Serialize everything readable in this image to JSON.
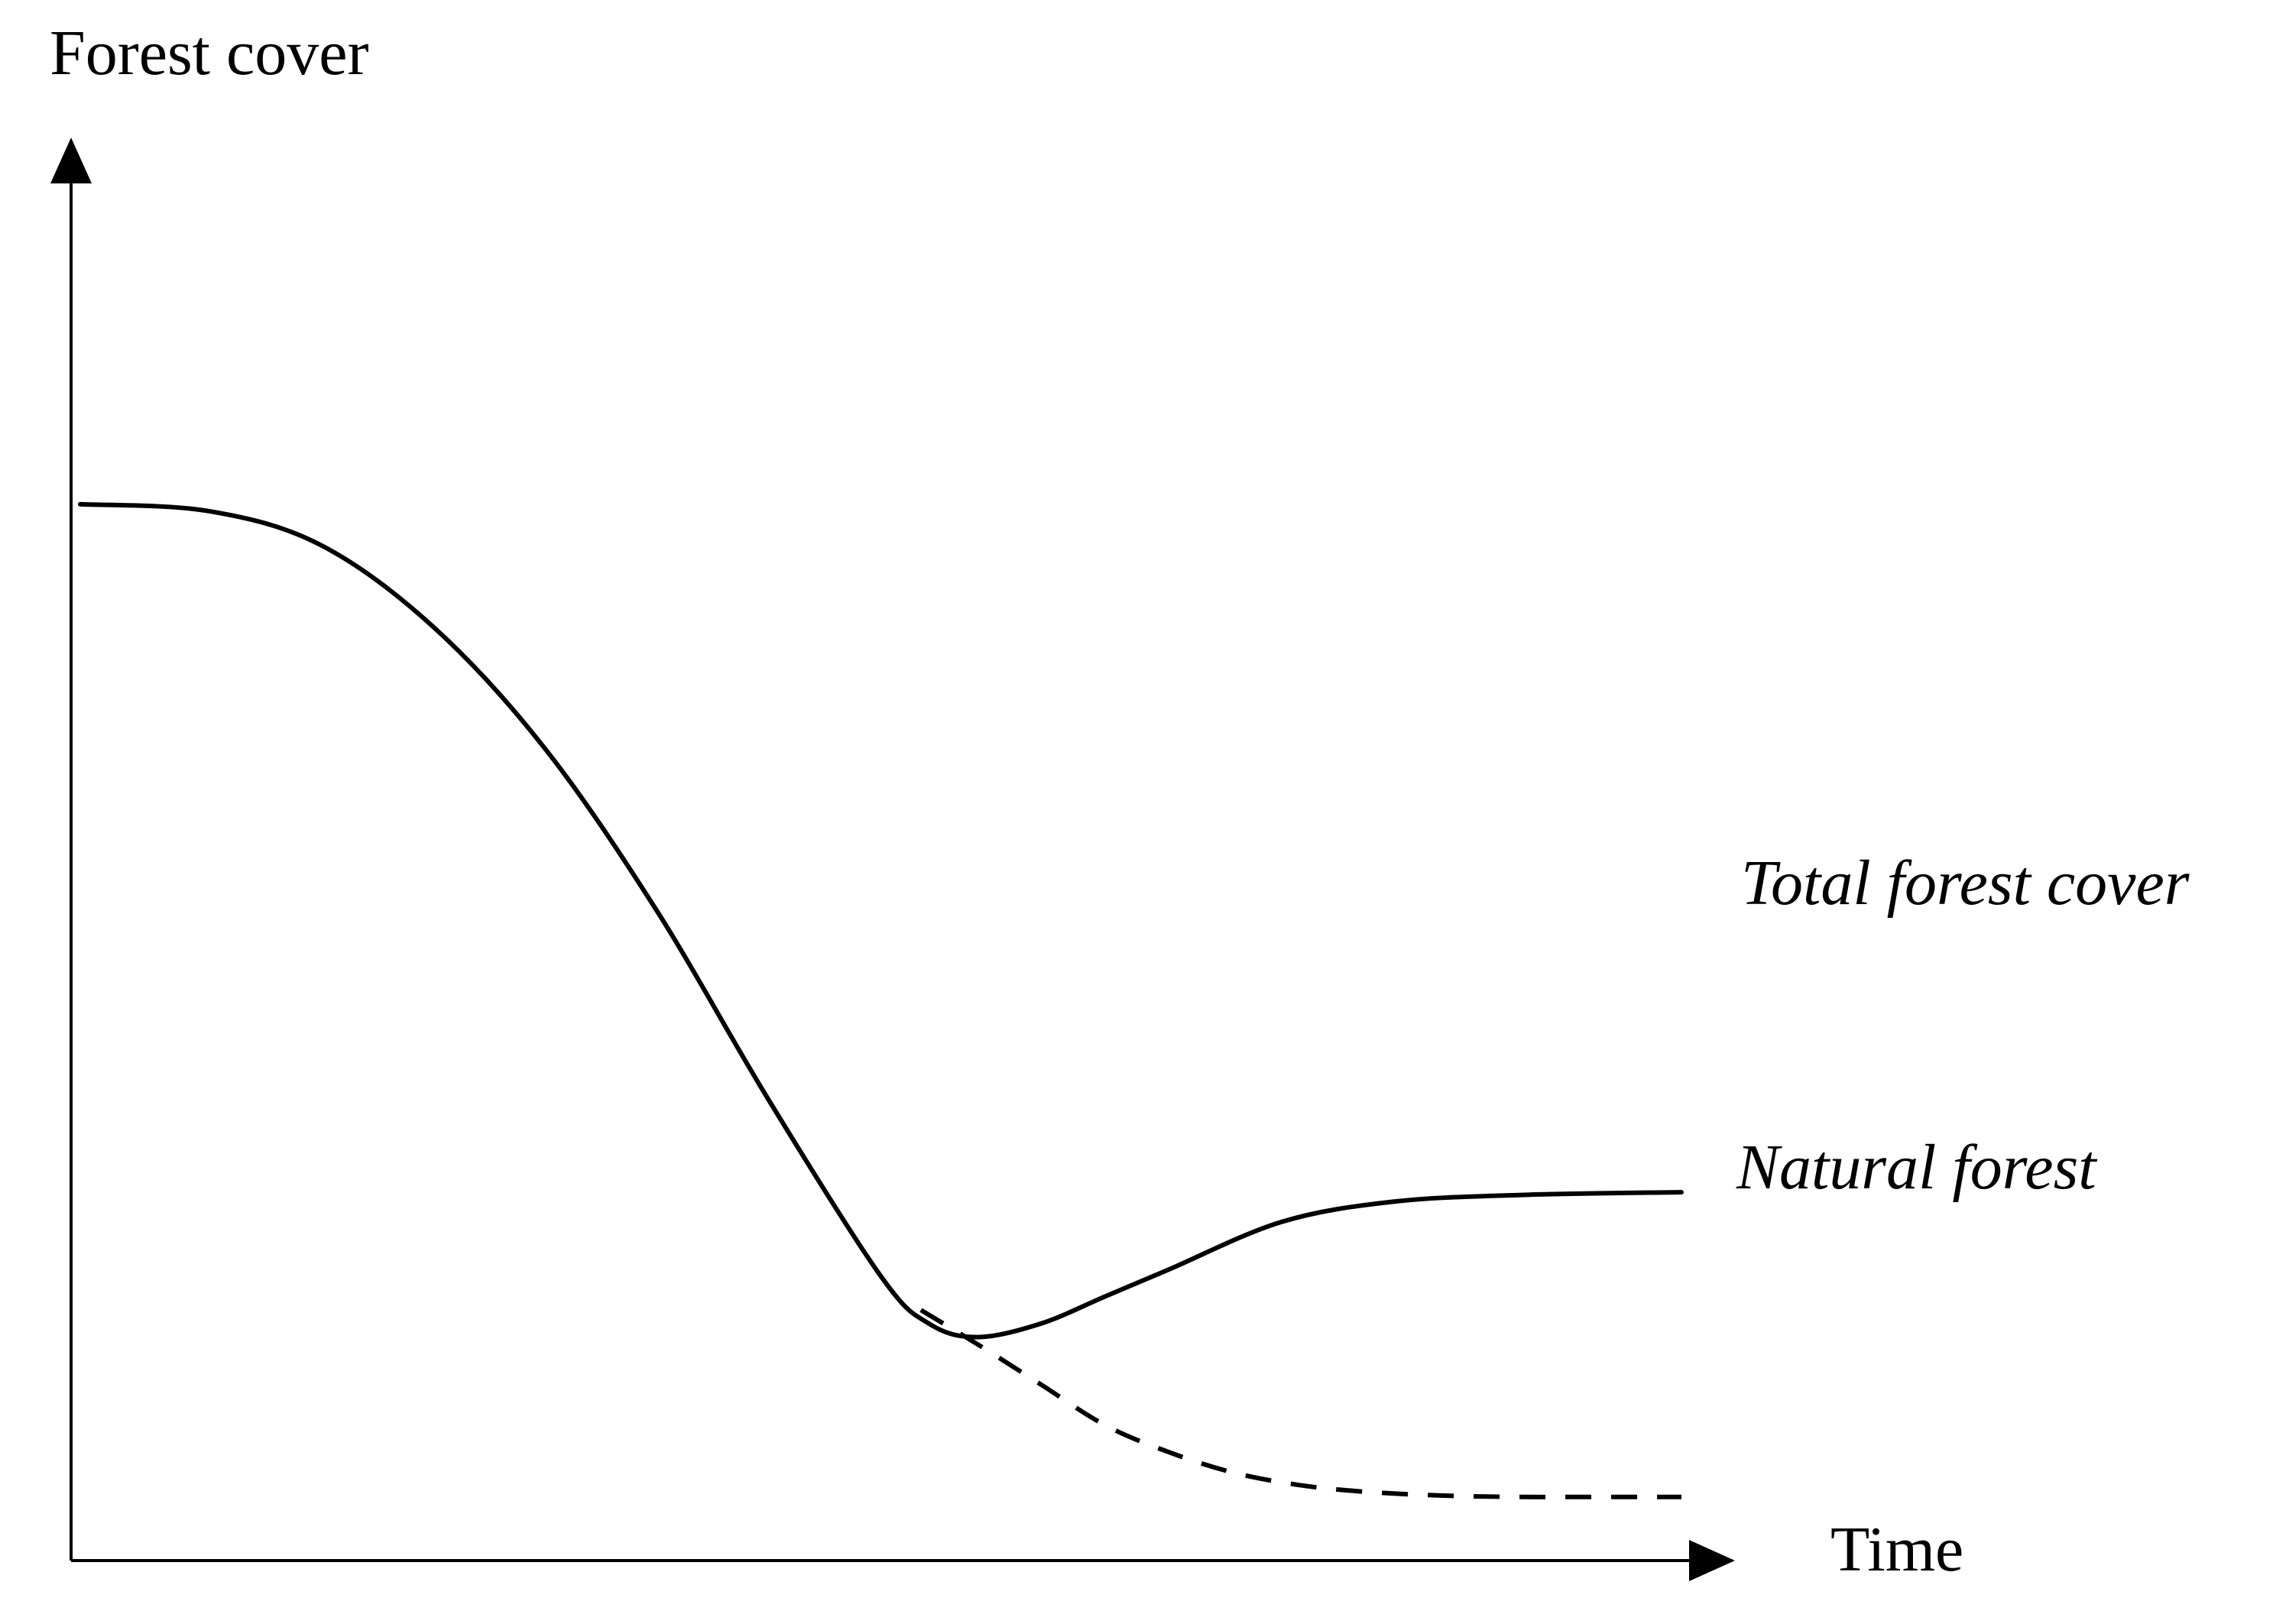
{
  "chart_data": {
    "type": "line",
    "title": "",
    "ylabel": "Forest cover",
    "xlabel": "Time",
    "xlim": [
      0,
      100
    ],
    "ylim": [
      0,
      100
    ],
    "grid": false,
    "legend": "none",
    "ticks": false,
    "series": [
      {
        "name": "Total forest cover",
        "style": "solid",
        "color": "#000000",
        "x": [
          0,
          8,
          15,
          22,
          29,
          36,
          43,
          50,
          53,
          56,
          60,
          64,
          68,
          75,
          82,
          90,
          100
        ],
        "y": [
          78,
          77.5,
          75,
          69,
          60,
          48,
          34,
          21,
          17.5,
          16.5,
          17.5,
          19.5,
          21.5,
          25,
          26.5,
          27,
          27.2
        ]
      },
      {
        "name": "Natural forest",
        "style": "dashed",
        "color": "#000000",
        "x": [
          52.5,
          56,
          60,
          64,
          68,
          72,
          76,
          80,
          85,
          90,
          95,
          100
        ],
        "y": [
          18.5,
          16,
          13,
          10,
          8,
          6.5,
          5.6,
          5.1,
          4.8,
          4.7,
          4.7,
          4.7
        ]
      }
    ]
  }
}
